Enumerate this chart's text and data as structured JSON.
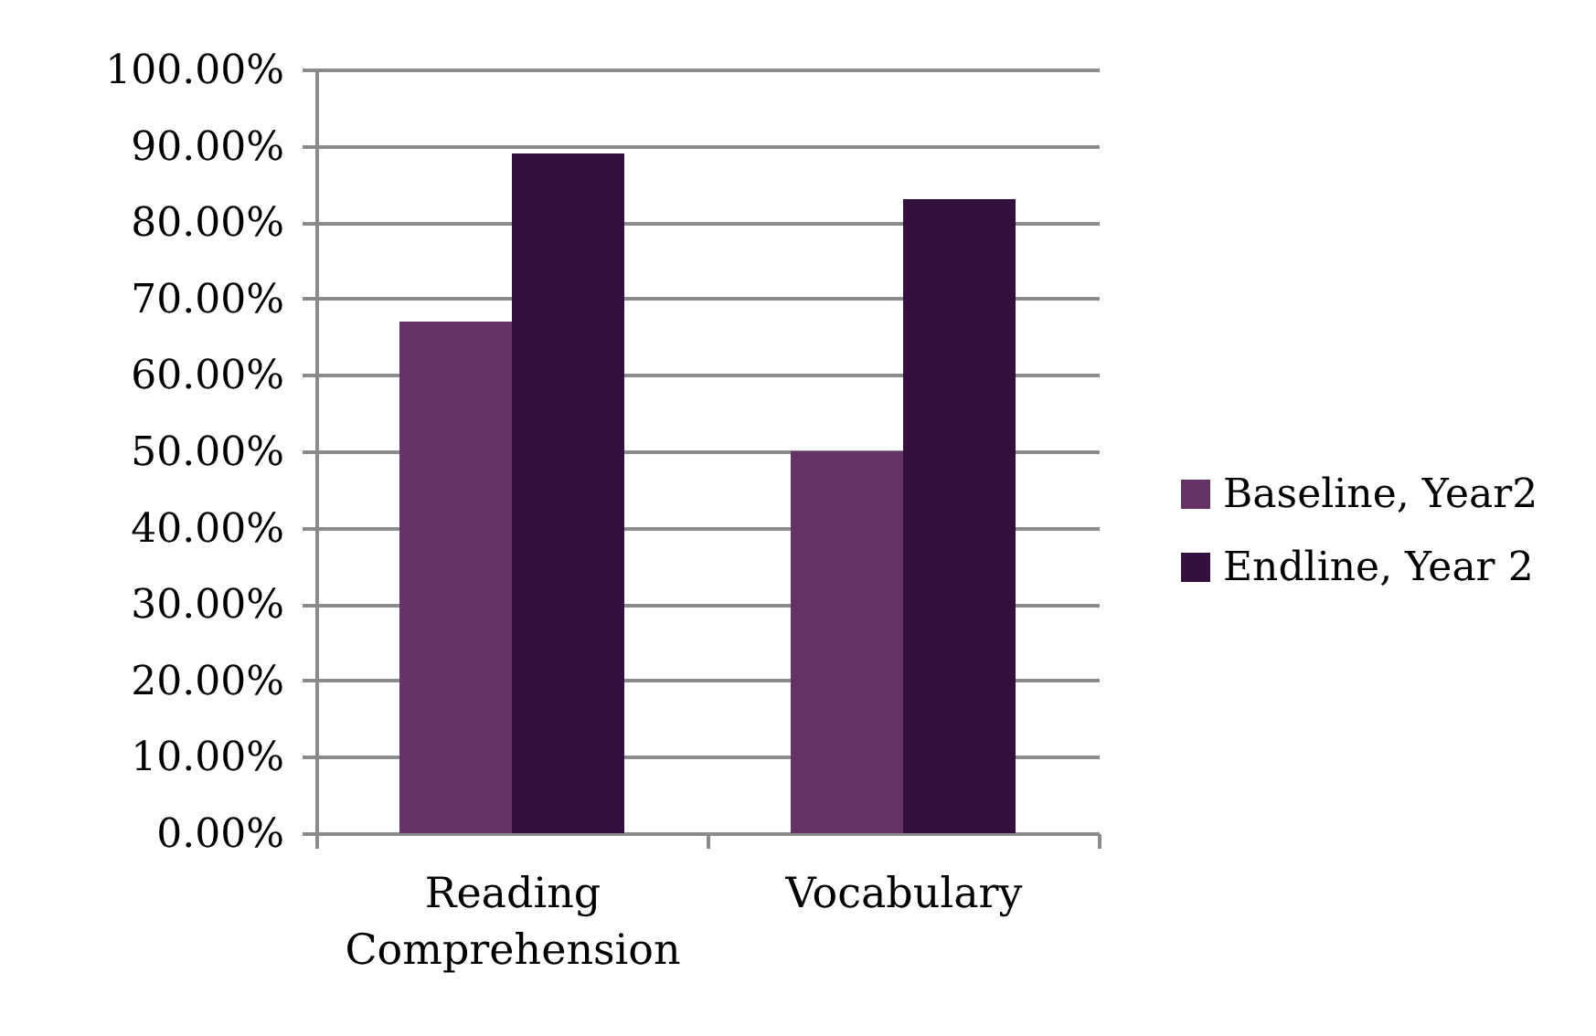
{
  "chart_data": {
    "type": "bar",
    "categories": [
      "Reading Comprehension",
      "Vocabulary"
    ],
    "series": [
      {
        "name": "Baseline, Year2",
        "color": "#653264",
        "values": [
          67,
          50
        ]
      },
      {
        "name": "Endline, Year 2",
        "color": "#34103f",
        "values": [
          89,
          83
        ]
      }
    ],
    "ylim": [
      0,
      100
    ],
    "yticks": [
      {
        "value": 0,
        "label": "0.00%"
      },
      {
        "value": 10,
        "label": "10.00%"
      },
      {
        "value": 20,
        "label": "20.00%"
      },
      {
        "value": 30,
        "label": "30.00%"
      },
      {
        "value": 40,
        "label": "40.00%"
      },
      {
        "value": 50,
        "label": "50.00%"
      },
      {
        "value": 60,
        "label": "60.00%"
      },
      {
        "value": 70,
        "label": "70.00%"
      },
      {
        "value": 80,
        "label": "80.00%"
      },
      {
        "value": 90,
        "label": "90.00%"
      },
      {
        "value": 100,
        "label": "100.00%"
      }
    ],
    "grid": "y",
    "legend": "right"
  }
}
